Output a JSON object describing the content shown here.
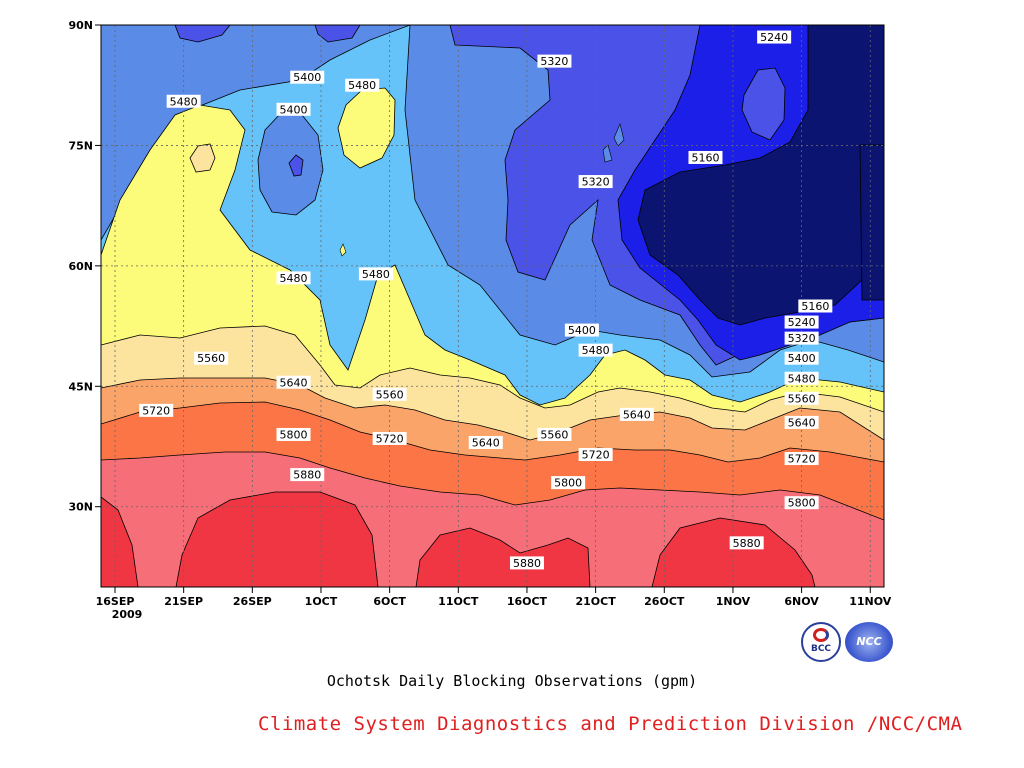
{
  "caption": "Ochotsk Daily Blocking Observations (gpm)",
  "credit": "Climate System Diagnostics and Prediction Division /NCC/CMA",
  "logos": {
    "left_text": "BCC",
    "right_text": "NCC"
  },
  "chart_data": {
    "type": "contour",
    "title": "Ochotsk Daily Blocking Observations (gpm)",
    "x_axis": {
      "ticks": [
        "16SEP",
        "21SEP",
        "26SEP",
        "1OCT",
        "6OCT",
        "11OCT",
        "16OCT",
        "21OCT",
        "26OCT",
        "1NOV",
        "6NOV",
        "11NOV"
      ],
      "year_label": "2009",
      "range": [
        "2009-09-16",
        "2009-11-11"
      ]
    },
    "y_axis": {
      "ticks": [
        "30N",
        "45N",
        "60N",
        "75N",
        "90N"
      ],
      "range": [
        20,
        90
      ]
    },
    "grid": true,
    "levels": [
      5160,
      5240,
      5320,
      5400,
      5480,
      5560,
      5640,
      5720,
      5800,
      5880
    ],
    "level_colors": [
      "#0b1470",
      "#1b1fe8",
      "#4b52e8",
      "#5a8be6",
      "#66c3fa",
      "#fcfc7a",
      "#fde49e",
      "#fba46a",
      "#fb7547",
      "#f56e78",
      "#f03543"
    ],
    "contour_labels": [
      {
        "date": "2009-09-21",
        "lat": 80.5,
        "value": "5480"
      },
      {
        "date": "2009-09-30",
        "lat": 83.5,
        "value": "5400"
      },
      {
        "date": "2009-09-29",
        "lat": 79.5,
        "value": "5400"
      },
      {
        "date": "2009-10-04",
        "lat": 82.5,
        "value": "5480"
      },
      {
        "date": "2009-10-18",
        "lat": 85.5,
        "value": "5320"
      },
      {
        "date": "2009-11-03",
        "lat": 88.5,
        "value": "5240"
      },
      {
        "date": "2009-10-21",
        "lat": 70.5,
        "value": "5320"
      },
      {
        "date": "2009-10-29",
        "lat": 73.5,
        "value": "5160"
      },
      {
        "date": "2009-09-29",
        "lat": 58.5,
        "value": "5480"
      },
      {
        "date": "2009-10-05",
        "lat": 59,
        "value": "5480"
      },
      {
        "date": "2009-11-06",
        "lat": 55,
        "value": "5160"
      },
      {
        "date": "2009-11-05",
        "lat": 53,
        "value": "5240"
      },
      {
        "date": "2009-11-05",
        "lat": 51,
        "value": "5320"
      },
      {
        "date": "2009-11-05",
        "lat": 48.5,
        "value": "5400"
      },
      {
        "date": "2009-11-05",
        "lat": 46,
        "value": "5480"
      },
      {
        "date": "2009-11-05",
        "lat": 43.5,
        "value": "5560"
      },
      {
        "date": "2009-11-05",
        "lat": 40.5,
        "value": "5640"
      },
      {
        "date": "2009-11-05",
        "lat": 36,
        "value": "5720"
      },
      {
        "date": "2009-11-05",
        "lat": 30.5,
        "value": "5800"
      },
      {
        "date": "2009-10-20",
        "lat": 52,
        "value": "5400"
      },
      {
        "date": "2009-10-21",
        "lat": 49.5,
        "value": "5480"
      },
      {
        "date": "2009-09-23",
        "lat": 48.5,
        "value": "5560"
      },
      {
        "date": "2009-09-29",
        "lat": 45.5,
        "value": "5640"
      },
      {
        "date": "2009-10-06",
        "lat": 44,
        "value": "5560"
      },
      {
        "date": "2009-09-19",
        "lat": 42,
        "value": "5720"
      },
      {
        "date": "2009-09-29",
        "lat": 39,
        "value": "5800"
      },
      {
        "date": "2009-10-06",
        "lat": 38.5,
        "value": "5720"
      },
      {
        "date": "2009-10-13",
        "lat": 38,
        "value": "5640"
      },
      {
        "date": "2009-10-18",
        "lat": 39,
        "value": "5560"
      },
      {
        "date": "2009-10-24",
        "lat": 41.5,
        "value": "5640"
      },
      {
        "date": "2009-10-21",
        "lat": 36.5,
        "value": "5720"
      },
      {
        "date": "2009-10-19",
        "lat": 33,
        "value": "5800"
      },
      {
        "date": "2009-09-30",
        "lat": 34,
        "value": "5880"
      },
      {
        "date": "2009-11-01",
        "lat": 25.5,
        "value": "5880"
      },
      {
        "date": "2009-10-16",
        "lat": 23,
        "value": "5880"
      }
    ]
  }
}
